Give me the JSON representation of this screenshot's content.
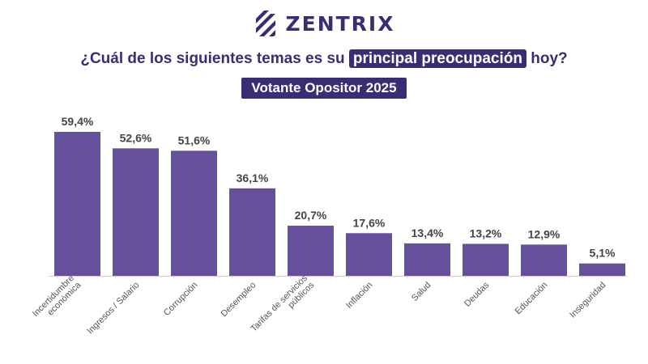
{
  "brand": {
    "name": "ZENTRIX",
    "logo_icon": "zentrix-stripes-logo",
    "color": "#3b2d73"
  },
  "header": {
    "title_before": "¿Cuál de los siguientes temas es su ",
    "title_highlight": "principal preocupación",
    "title_after": " hoy?",
    "subtitle": "Votante Opositor 2025"
  },
  "chart_data": {
    "type": "bar",
    "categories": [
      "Incertidumbre\neconómica",
      "Ingresos / Salario",
      "Corrupción",
      "Desempleo",
      "Tarifas de servicios\npúblicos",
      "Inflación",
      "Salud",
      "Deudas",
      "Educación",
      "Inseguridad"
    ],
    "values": [
      59.4,
      52.6,
      51.6,
      36.1,
      20.7,
      17.6,
      13.4,
      13.2,
      12.9,
      5.1
    ],
    "value_labels": [
      "59,4%",
      "52,6%",
      "51,6%",
      "36,1%",
      "20,7%",
      "17,6%",
      "13,4%",
      "13,2%",
      "12,9%",
      "5,1%"
    ],
    "title": "¿Cuál de los siguientes temas es su principal preocupación hoy?",
    "subtitle": "Votante Opositor 2025",
    "xlabel": "",
    "ylabel": "",
    "ylim": [
      0,
      60
    ],
    "grid": false,
    "bar_color": "#66509c",
    "label_color": "#444444"
  }
}
